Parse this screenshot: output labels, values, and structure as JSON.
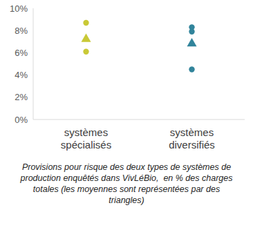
{
  "chart_data": {
    "type": "scatter",
    "title": "Provisions pour risque des deux types de systèmes de production enquêtés dans VivLéBio,  en % des charges totales (les moyennes sont représentées par des triangles)",
    "categories": [
      "systèmes spécialisés",
      "systèmes diversifiés"
    ],
    "colors": [
      "#c9c936",
      "#31849b"
    ],
    "series": [
      {
        "marker": "circle",
        "values": [
          [
            8.7,
            6.1
          ],
          [
            8.3,
            7.9,
            4.5
          ]
        ]
      },
      {
        "marker": "triangle",
        "values": [
          7.3,
          6.9
        ]
      }
    ],
    "ylim": [
      0,
      10
    ],
    "yticks": [
      {
        "value": 0,
        "label": "0%"
      },
      {
        "value": 2,
        "label": "2%"
      },
      {
        "value": 4,
        "label": "4%"
      },
      {
        "value": 6,
        "label": "6%"
      },
      {
        "value": 8,
        "label": "8%"
      },
      {
        "value": 10,
        "label": "10%"
      }
    ],
    "grid": false
  }
}
